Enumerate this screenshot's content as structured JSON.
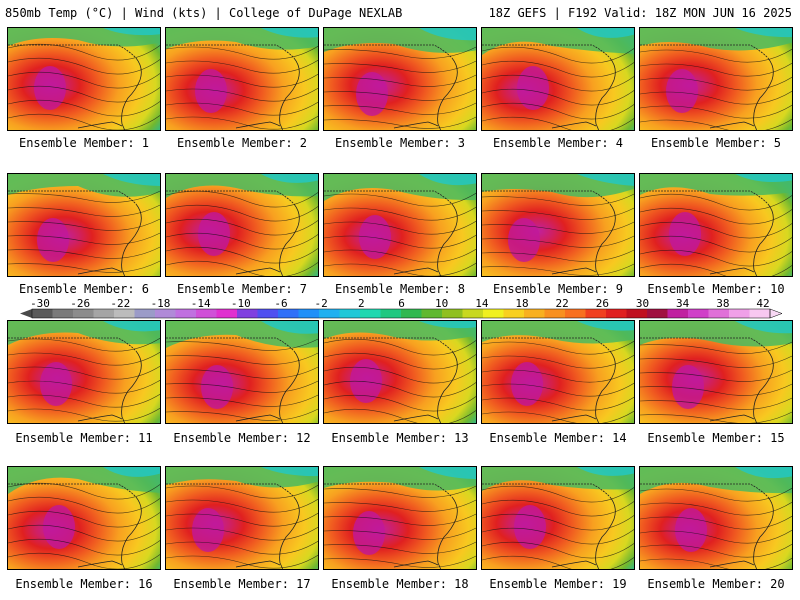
{
  "header": {
    "left": "850mb Temp (°C) | Wind (kts) | College of DuPage NEXLAB",
    "right": "18Z GEFS | F192 Valid: 18Z MON JUN 16 2025"
  },
  "colorbar": {
    "labels": [
      "-30",
      "-26",
      "-22",
      "-18",
      "-14",
      "-10",
      "-6",
      "-2",
      "2",
      "6",
      "10",
      "14",
      "18",
      "22",
      "26",
      "30",
      "34",
      "38",
      "42"
    ],
    "colors": [
      "#5a5a5a",
      "#7a7a7a",
      "#8c8c8c",
      "#a5a5a5",
      "#bcbcbc",
      "#9b9bc8",
      "#b08ad8",
      "#c070e0",
      "#d050d8",
      "#e030d0",
      "#8040e0",
      "#5050f0",
      "#3070f8",
      "#2090f8",
      "#20b0f0",
      "#20c8d8",
      "#20d8b0",
      "#20c880",
      "#30b850",
      "#60b830",
      "#90c020",
      "#c8d820",
      "#f0f020",
      "#f8d020",
      "#f8b020",
      "#f89020",
      "#f87020",
      "#f04020",
      "#e02020",
      "#c01020",
      "#a01040",
      "#c020a0",
      "#d040c8",
      "#e070d8",
      "#f0a0e8",
      "#f8c8f0"
    ]
  },
  "members": [
    {
      "label": "Ensemble Member: 1"
    },
    {
      "label": "Ensemble Member: 2"
    },
    {
      "label": "Ensemble Member: 3"
    },
    {
      "label": "Ensemble Member: 4"
    },
    {
      "label": "Ensemble Member: 5"
    },
    {
      "label": "Ensemble Member: 6"
    },
    {
      "label": "Ensemble Member: 7"
    },
    {
      "label": "Ensemble Member: 8"
    },
    {
      "label": "Ensemble Member: 9"
    },
    {
      "label": "Ensemble Member: 10"
    },
    {
      "label": "Ensemble Member: 11"
    },
    {
      "label": "Ensemble Member: 12"
    },
    {
      "label": "Ensemble Member: 13"
    },
    {
      "label": "Ensemble Member: 14"
    },
    {
      "label": "Ensemble Member: 15"
    },
    {
      "label": "Ensemble Member: 16"
    },
    {
      "label": "Ensemble Member: 17"
    },
    {
      "label": "Ensemble Member: 18"
    },
    {
      "label": "Ensemble Member: 19"
    },
    {
      "label": "Ensemble Member: 20"
    }
  ]
}
